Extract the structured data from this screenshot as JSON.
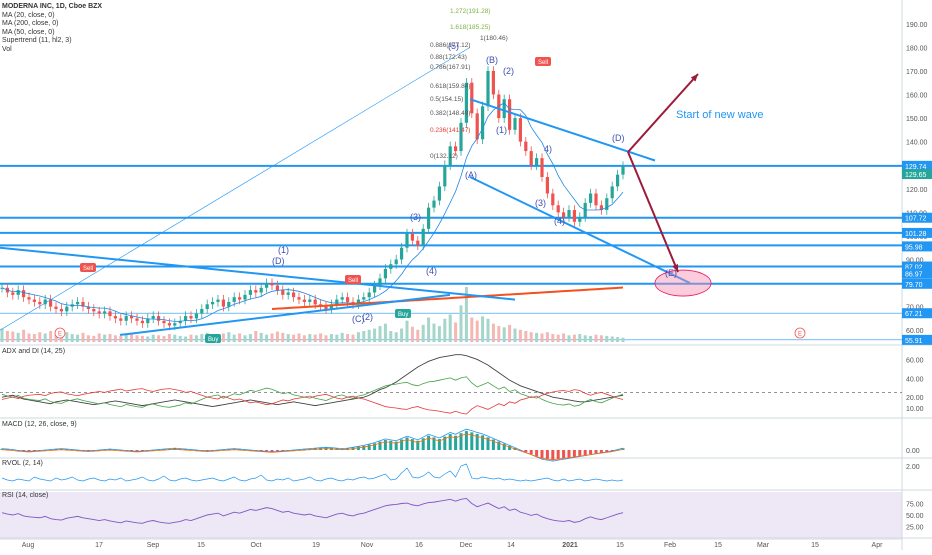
{
  "header": {
    "title": "MODERNA INC, 1D, Cboe BZX",
    "indicators": [
      "MA (20, close, 0)",
      "MA (200, close, 0)",
      "MA (50, close, 0)",
      "Supertrend (11, hl2, 3)",
      "Vol"
    ]
  },
  "annotations": {
    "start_new_wave": "Start of new wave",
    "sell": "Sell",
    "buy": "Buy",
    "earnings": "E"
  },
  "panes": {
    "adx": "ADX and DI (14, 25)",
    "macd": "MACD (12, 26, close, 9)",
    "rvol": "RVOL (2, 14)",
    "rsi": "RSI (14, close)"
  },
  "waves": [
    "(1)",
    "(2)",
    "(3)",
    "(4)",
    "(5)",
    "(A)",
    "(B)",
    "(C)",
    "(D)",
    "(E)",
    "1",
    "2",
    "3",
    "4",
    "5"
  ],
  "fib_levels": [
    "1.272(191.28)",
    "1.618(185.25)",
    "1(180.46)",
    "0.886(177.12)",
    "0.88(172.43)",
    "0.786(167.91)",
    "0.618(159.84)",
    "0.5(154.15)",
    "0.382(148.49)",
    "0.236(141.47)",
    "0(132.12)"
  ],
  "price_axis": [
    "190.00",
    "180.00",
    "170.00",
    "160.00",
    "150.00",
    "140.00",
    "130.00",
    "120.00",
    "110.00",
    "100.00",
    "90.00",
    "80.00",
    "70.00",
    "60.00"
  ],
  "price_tags": [
    {
      "label": "129.74",
      "color": "#2196f3"
    },
    {
      "label": "129.65",
      "color": "#26a69a"
    },
    {
      "label": "107.72",
      "color": "#2196f3"
    },
    {
      "label": "101.28",
      "color": "#2196f3"
    },
    {
      "label": "95.98",
      "color": "#2196f3"
    },
    {
      "label": "87.02",
      "color": "#2196f3"
    },
    {
      "label": "86.97",
      "color": "#2196f3"
    },
    {
      "label": "79.70",
      "color": "#2196f3"
    },
    {
      "label": "67.21",
      "color": "#2196f3"
    },
    {
      "label": "55.91",
      "color": "#2196f3"
    }
  ],
  "adx_axis": [
    "60.00",
    "40.00",
    "20.00"
  ],
  "macd_axis": [
    "10.00",
    "0.00"
  ],
  "rvol_axis": [
    "2.00"
  ],
  "rsi_axis": [
    "75.00",
    "50.00",
    "25.00"
  ],
  "date_axis": [
    "Aug",
    "17",
    "Sep",
    "15",
    "Oct",
    "19",
    "Nov",
    "16",
    "Dec",
    "14",
    "2021",
    "15",
    "Feb",
    "15",
    "Mar",
    "15",
    "Apr"
  ],
  "colors": {
    "blue": "#2196f3",
    "up": "#26a69a",
    "down": "#ef5350",
    "wave": "#3f51b5",
    "arrow": "#9c1a3a",
    "ellipse": "#f48fb1"
  },
  "chart_data": {
    "type": "candlestick",
    "title": "MODERNA INC, 1D, Cboe BZX",
    "y_range": [
      55,
      195
    ],
    "resistance_lines": [
      129.74,
      107.72,
      101.28,
      95.98,
      87.02,
      79.7
    ],
    "closes": [
      78,
      76,
      75,
      77,
      74,
      73,
      72,
      71,
      73,
      70,
      69,
      68,
      70,
      71,
      72,
      70,
      69,
      68,
      67,
      68,
      66,
      65,
      64,
      66,
      65,
      64,
      63,
      65,
      66,
      64,
      63,
      62,
      63,
      64,
      66,
      65,
      67,
      69,
      71,
      72,
      73,
      70,
      72,
      74,
      73,
      75,
      77,
      76,
      78,
      80,
      79,
      77,
      75,
      76,
      74,
      73,
      72,
      73,
      71,
      70,
      69,
      71,
      73,
      74,
      72,
      71,
      73,
      74,
      76,
      79,
      82,
      86,
      88,
      90,
      95,
      101,
      98,
      96,
      103,
      112,
      115,
      121,
      130,
      138,
      136,
      148,
      165,
      152,
      141,
      155,
      170,
      160,
      150,
      158,
      145,
      150,
      140,
      136,
      130,
      133,
      125,
      118,
      113,
      110,
      108,
      111,
      106,
      108,
      114,
      118,
      113,
      111,
      116,
      121,
      126,
      129.65
    ],
    "volume": [
      22,
      18,
      17,
      15,
      20,
      14,
      13,
      16,
      14,
      18,
      12,
      11,
      16,
      13,
      12,
      15,
      11,
      10,
      14,
      12,
      13,
      11,
      10,
      12,
      14,
      11,
      10,
      9,
      12,
      11,
      10,
      13,
      12,
      10,
      9,
      12,
      11,
      13,
      15,
      12,
      11,
      14,
      16,
      12,
      14,
      11,
      13,
      18,
      15,
      12,
      14,
      17,
      15,
      13,
      12,
      14,
      11,
      13,
      12,
      14,
      11,
      13,
      12,
      15,
      13,
      12,
      16,
      18,
      20,
      22,
      26,
      30,
      18,
      16,
      22,
      35,
      25,
      20,
      28,
      40,
      30,
      26,
      38,
      45,
      32,
      60,
      90,
      40,
      35,
      42,
      38,
      30,
      26,
      24,
      28,
      22,
      20,
      18,
      16,
      15,
      14,
      16,
      13,
      12,
      14,
      11,
      12,
      13,
      11,
      10,
      12,
      11,
      10,
      9,
      8,
      7
    ],
    "adx_line": [
      20,
      21,
      22,
      20,
      18,
      17,
      16,
      15,
      14,
      13,
      15,
      16,
      17,
      16,
      15,
      14,
      13,
      12,
      13,
      14,
      15,
      16,
      15,
      14,
      13,
      12,
      11,
      12,
      13,
      14,
      15,
      16,
      17,
      16,
      15,
      14,
      13,
      12,
      11,
      10,
      11,
      12,
      13,
      14,
      15,
      16,
      17,
      16,
      15,
      14,
      13,
      12,
      13,
      14,
      15,
      14,
      13,
      12,
      11,
      12,
      13,
      14,
      15,
      16,
      17,
      18,
      19,
      20,
      22,
      25,
      28,
      30,
      33,
      36,
      40,
      44,
      48,
      52,
      55,
      58,
      60,
      62,
      63,
      64,
      65,
      65,
      64,
      62,
      60,
      57,
      54,
      50,
      46,
      42,
      38,
      35,
      32,
      30,
      28,
      26,
      24,
      22,
      20,
      19,
      18,
      17,
      16,
      15,
      15,
      16,
      17,
      18,
      19,
      20,
      21,
      22
    ],
    "macd_hist": [
      0.3,
      0.2,
      0.1,
      -0.1,
      -0.2,
      -0.3,
      -0.2,
      -0.1,
      0,
      0.1,
      0.2,
      0.3,
      0.2,
      0.1,
      0,
      -0.1,
      -0.2,
      -0.1,
      0,
      0.1,
      0.2,
      0.1,
      0,
      -0.1,
      -0.2,
      -0.3,
      -0.2,
      -0.1,
      0,
      0.1,
      0.2,
      0.3,
      0.4,
      0.3,
      0.2,
      0.1,
      0,
      -0.1,
      -0.2,
      -0.1,
      0,
      0.1,
      0.2,
      0.3,
      0.2,
      0.1,
      0,
      -0.1,
      -0.2,
      -0.3,
      -0.4,
      -0.3,
      -0.2,
      -0.1,
      0,
      0.1,
      0.2,
      0.3,
      0.4,
      0.5,
      0.6,
      0.5,
      0.4,
      0.3,
      0.4,
      0.6,
      0.8,
      1,
      1.3,
      1.6,
      2,
      2.4,
      2.2,
      2,
      2.5,
      3,
      2.6,
      2.2,
      2.8,
      3.4,
      3,
      2.6,
      3.2,
      3.8,
      3.4,
      4,
      4.5,
      4.2,
      3.8,
      3.5,
      3,
      2.5,
      2,
      1.5,
      1,
      0.5,
      0,
      -0.5,
      -1,
      -1.5,
      -2,
      -2.2,
      -2.4,
      -2.2,
      -2,
      -1.8,
      -1.6,
      -1.4,
      -1.2,
      -1,
      -0.8,
      -0.6,
      -0.4,
      -0.2,
      0.1,
      0.4
    ],
    "rvol": [
      0.8,
      0.6,
      0.5,
      0.7,
      0.6,
      0.5,
      0.9,
      0.7,
      0.6,
      0.5,
      0.8,
      0.6,
      0.7,
      0.9,
      0.6,
      0.5,
      0.7,
      0.8,
      0.6,
      0.5,
      0.7,
      0.6,
      0.8,
      0.5,
      0.6,
      0.7,
      0.9,
      0.6,
      0.5,
      0.7,
      1.0,
      0.6,
      0.5,
      0.7,
      0.8,
      0.6,
      0.5,
      0.6,
      0.7,
      0.8,
      0.6,
      0.5,
      0.7,
      0.9,
      0.6,
      0.5,
      0.7,
      0.8,
      1.1,
      0.6,
      0.5,
      0.7,
      0.6,
      0.8,
      0.5,
      0.6,
      0.7,
      0.9,
      0.6,
      0.5,
      0.7,
      0.8,
      0.6,
      0.5,
      0.7,
      0.6,
      0.8,
      0.9,
      0.7,
      0.8,
      1.0,
      1.2,
      0.6,
      0.7,
      1.3,
      1.8,
      0.9,
      0.8,
      1.0,
      1.4,
      0.9,
      0.8,
      1.2,
      1.5,
      0.9,
      2.0,
      2.2,
      0.8,
      0.7,
      0.9,
      0.8,
      0.7,
      0.8,
      0.6,
      0.7,
      0.6,
      0.5,
      0.6,
      0.5,
      0.6,
      0.7,
      0.8,
      0.6,
      0.5,
      0.7,
      0.5,
      0.6,
      0.7,
      0.5,
      0.6,
      0.7,
      0.6,
      0.5,
      0.6,
      0.5,
      0.6
    ],
    "rsi": [
      55,
      52,
      50,
      53,
      48,
      46,
      45,
      44,
      47,
      42,
      40,
      39,
      43,
      45,
      47,
      44,
      42,
      40,
      38,
      40,
      37,
      35,
      33,
      37,
      35,
      33,
      32,
      36,
      38,
      35,
      33,
      32,
      34,
      36,
      40,
      38,
      42,
      46,
      50,
      52,
      54,
      48,
      52,
      56,
      54,
      58,
      62,
      60,
      63,
      66,
      64,
      60,
      56,
      58,
      54,
      52,
      50,
      52,
      48,
      46,
      44,
      48,
      52,
      54,
      50,
      48,
      52,
      54,
      58,
      62,
      66,
      70,
      72,
      73,
      75,
      76,
      72,
      70,
      74,
      77,
      78,
      80,
      82,
      84,
      80,
      84,
      86,
      75,
      68,
      72,
      76,
      70,
      64,
      68,
      60,
      63,
      56,
      53,
      49,
      52,
      46,
      42,
      39,
      37,
      36,
      38,
      34,
      36,
      42,
      46,
      42,
      40,
      44,
      48,
      52,
      55
    ]
  }
}
